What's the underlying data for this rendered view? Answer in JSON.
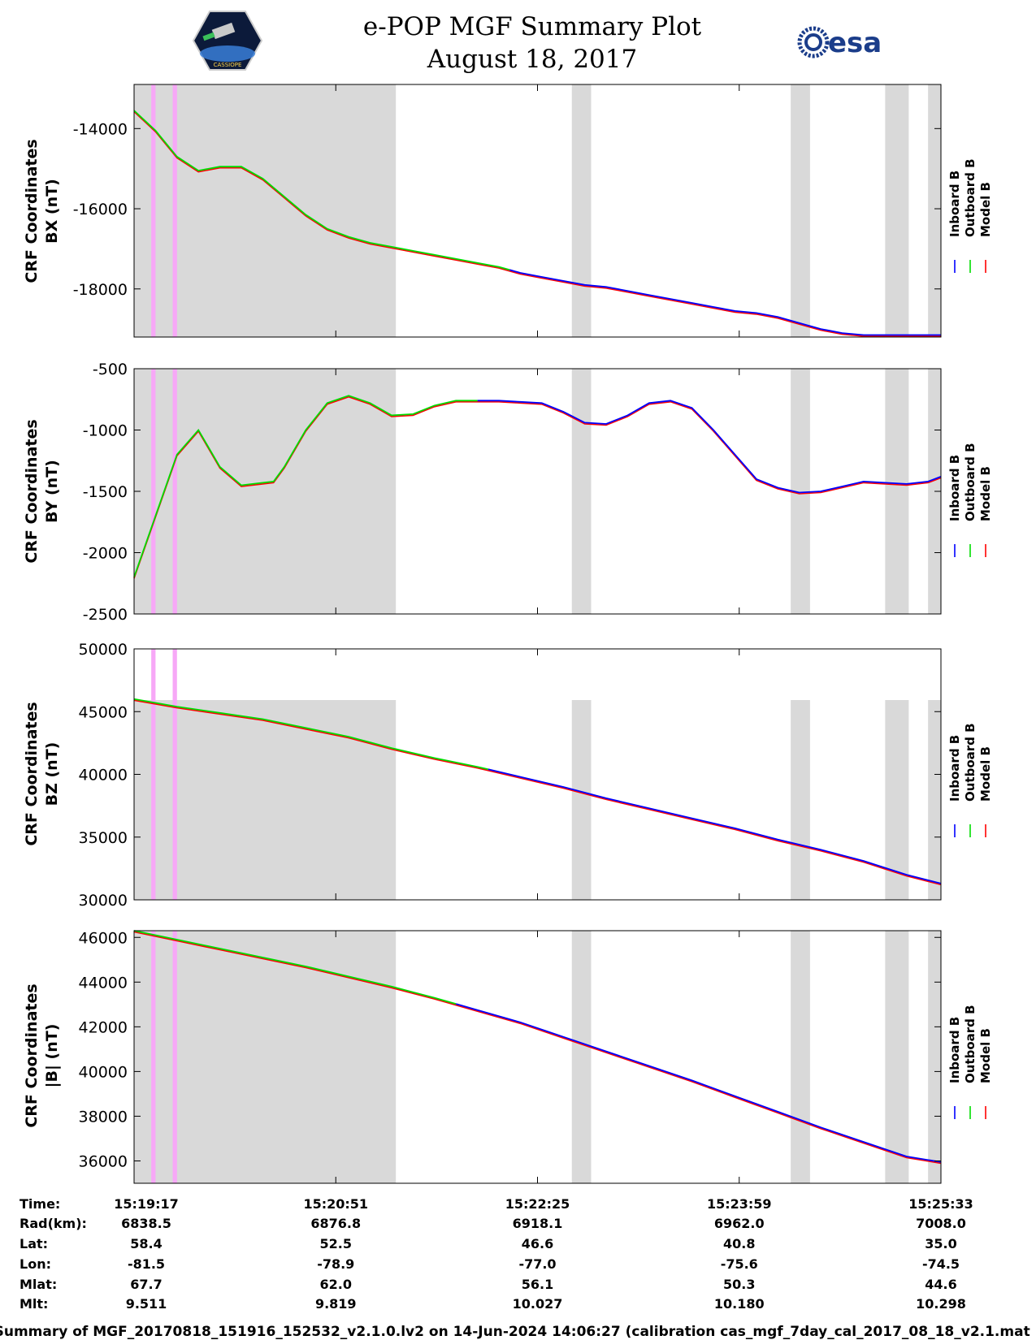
{
  "header": {
    "title_line1": "e-POP MGF Summary Plot",
    "title_line2": "August 18, 2017",
    "logo_left_text": "CASSIOPE",
    "logo_right_text": "esa"
  },
  "colors": {
    "inboard": "#0000ff",
    "outboard": "#00dd00",
    "model": "#ff0000",
    "eclipse_band": "#d9d9d9",
    "flag_band": "#f7a8f7"
  },
  "chart_data": [
    {
      "type": "line",
      "panel": "bx",
      "ylabel_line1": "CRF Coordinates",
      "ylabel_line2": "BX (nT)",
      "ylim": [
        -19200,
        -12900
      ],
      "yticks": [
        -14000,
        -16000,
        -18000
      ],
      "legend": [
        "Inboard B",
        "Outboard B",
        "Model B"
      ],
      "x_seconds": [
        0,
        10,
        20,
        30,
        40,
        50,
        60,
        70,
        80,
        90,
        100,
        110,
        120,
        130,
        140,
        150,
        160,
        170,
        180,
        190,
        200,
        210,
        220,
        230,
        240,
        250,
        260,
        270,
        280,
        290,
        300,
        310,
        320,
        330,
        340,
        350,
        360,
        370,
        376
      ],
      "values": [
        -13550,
        -14050,
        -14700,
        -15050,
        -14950,
        -14950,
        -15250,
        -15700,
        -16150,
        -16500,
        -16700,
        -16850,
        -16950,
        -17050,
        -17150,
        -17250,
        -17350,
        -17450,
        -17600,
        -17700,
        -17800,
        -17900,
        -17950,
        -18050,
        -18150,
        -18250,
        -18350,
        -18450,
        -18550,
        -18600,
        -18700,
        -18850,
        -19000,
        -19100,
        -19150,
        -19150,
        -19150,
        -19150,
        -19150
      ],
      "outboard_end_s": 175,
      "inboard_start_s": 175
    },
    {
      "type": "line",
      "panel": "by",
      "ylabel_line1": "CRF Coordinates",
      "ylabel_line2": "BY (nT)",
      "ylim": [
        -2500,
        -500
      ],
      "yticks": [
        -500,
        -1000,
        -1500,
        -2000,
        -2500
      ],
      "legend": [
        "Inboard B",
        "Outboard B",
        "Model B"
      ],
      "x_seconds": [
        0,
        10,
        20,
        30,
        40,
        50,
        60,
        65,
        70,
        80,
        90,
        100,
        110,
        120,
        130,
        140,
        150,
        160,
        170,
        180,
        190,
        200,
        210,
        220,
        230,
        240,
        250,
        260,
        270,
        280,
        290,
        300,
        310,
        320,
        330,
        340,
        350,
        360,
        370,
        376
      ],
      "values": [
        -2200,
        -1700,
        -1200,
        -1000,
        -1300,
        -1450,
        -1430,
        -1420,
        -1300,
        -1000,
        -780,
        -720,
        -780,
        -880,
        -870,
        -800,
        -760,
        -760,
        -760,
        -770,
        -780,
        -850,
        -940,
        -950,
        -880,
        -780,
        -760,
        -820,
        -1000,
        -1200,
        -1400,
        -1470,
        -1510,
        -1500,
        -1460,
        -1420,
        -1430,
        -1440,
        -1420,
        -1380
      ],
      "outboard_end_s": 160,
      "inboard_start_s": 160
    },
    {
      "type": "line",
      "panel": "bz",
      "ylabel_line1": "CRF Coordinates",
      "ylabel_line2": "BZ (nT)",
      "ylim": [
        30000,
        50000
      ],
      "yticks": [
        50000,
        45000,
        40000,
        35000,
        30000
      ],
      "legend": [
        "Inboard B",
        "Outboard B",
        "Model B"
      ],
      "x_seconds": [
        0,
        20,
        40,
        60,
        80,
        100,
        120,
        140,
        160,
        180,
        200,
        220,
        240,
        260,
        280,
        300,
        320,
        340,
        360,
        376
      ],
      "values": [
        46000,
        45400,
        44900,
        44400,
        43700,
        43000,
        42100,
        41300,
        40600,
        39800,
        39000,
        38100,
        37300,
        36500,
        35700,
        34800,
        34000,
        33100,
        32000,
        31300
      ],
      "outboard_end_s": 165,
      "inboard_start_s": 165
    },
    {
      "type": "line",
      "panel": "btotal",
      "ylabel_line1": "CRF Coordinates",
      "ylabel_line2": "|B| (nT)",
      "ylim": [
        35000,
        46300
      ],
      "yticks": [
        46000,
        44000,
        42000,
        40000,
        38000,
        36000
      ],
      "legend": [
        "Inboard B",
        "Outboard B",
        "Model B"
      ],
      "x_seconds": [
        0,
        20,
        40,
        60,
        80,
        100,
        120,
        140,
        160,
        180,
        200,
        220,
        240,
        260,
        280,
        300,
        320,
        340,
        360,
        376
      ],
      "values": [
        46300,
        45900,
        45500,
        45100,
        44700,
        44250,
        43800,
        43300,
        42750,
        42200,
        41550,
        40900,
        40250,
        39600,
        38900,
        38200,
        37500,
        36850,
        36200,
        35950
      ],
      "outboard_end_s": 150,
      "inboard_start_s": 150
    }
  ],
  "time_axis": {
    "x_range_seconds": [
      0,
      376
    ],
    "tick_seconds": [
      0,
      94,
      188,
      282,
      376
    ]
  },
  "shading": {
    "gray_bands_seconds": [
      [
        0,
        122
      ],
      [
        204,
        213
      ],
      [
        306,
        315
      ],
      [
        350,
        361
      ],
      [
        370,
        376
      ]
    ],
    "pink_bands_seconds": [
      [
        8,
        10
      ],
      [
        18,
        20
      ]
    ]
  },
  "summary": {
    "row_labels": [
      "Time:",
      "Rad(km):",
      "Lat:",
      "Lon:",
      "Mlat:",
      "Mlt:"
    ],
    "columns": [
      [
        "15:19:17",
        "6838.5",
        "58.4",
        "-81.5",
        "67.7",
        "9.511"
      ],
      [
        "15:20:51",
        "6876.8",
        "52.5",
        "-78.9",
        "62.0",
        "9.819"
      ],
      [
        "15:22:25",
        "6918.1",
        "46.6",
        "-77.0",
        "56.1",
        "10.027"
      ],
      [
        "15:23:59",
        "6962.0",
        "40.8",
        "-75.6",
        "50.3",
        "10.180"
      ],
      [
        "15:25:33",
        "7008.0",
        "35.0",
        "-74.5",
        "44.6",
        "10.298"
      ]
    ]
  },
  "footer": {
    "text": "Summary of MGF_20170818_151916_152532_v2.1.0.lv2 on 14-Jun-2024 14:06:27 (calibration cas_mgf_7day_cal_2017_08_18_v2.1.mat )"
  }
}
